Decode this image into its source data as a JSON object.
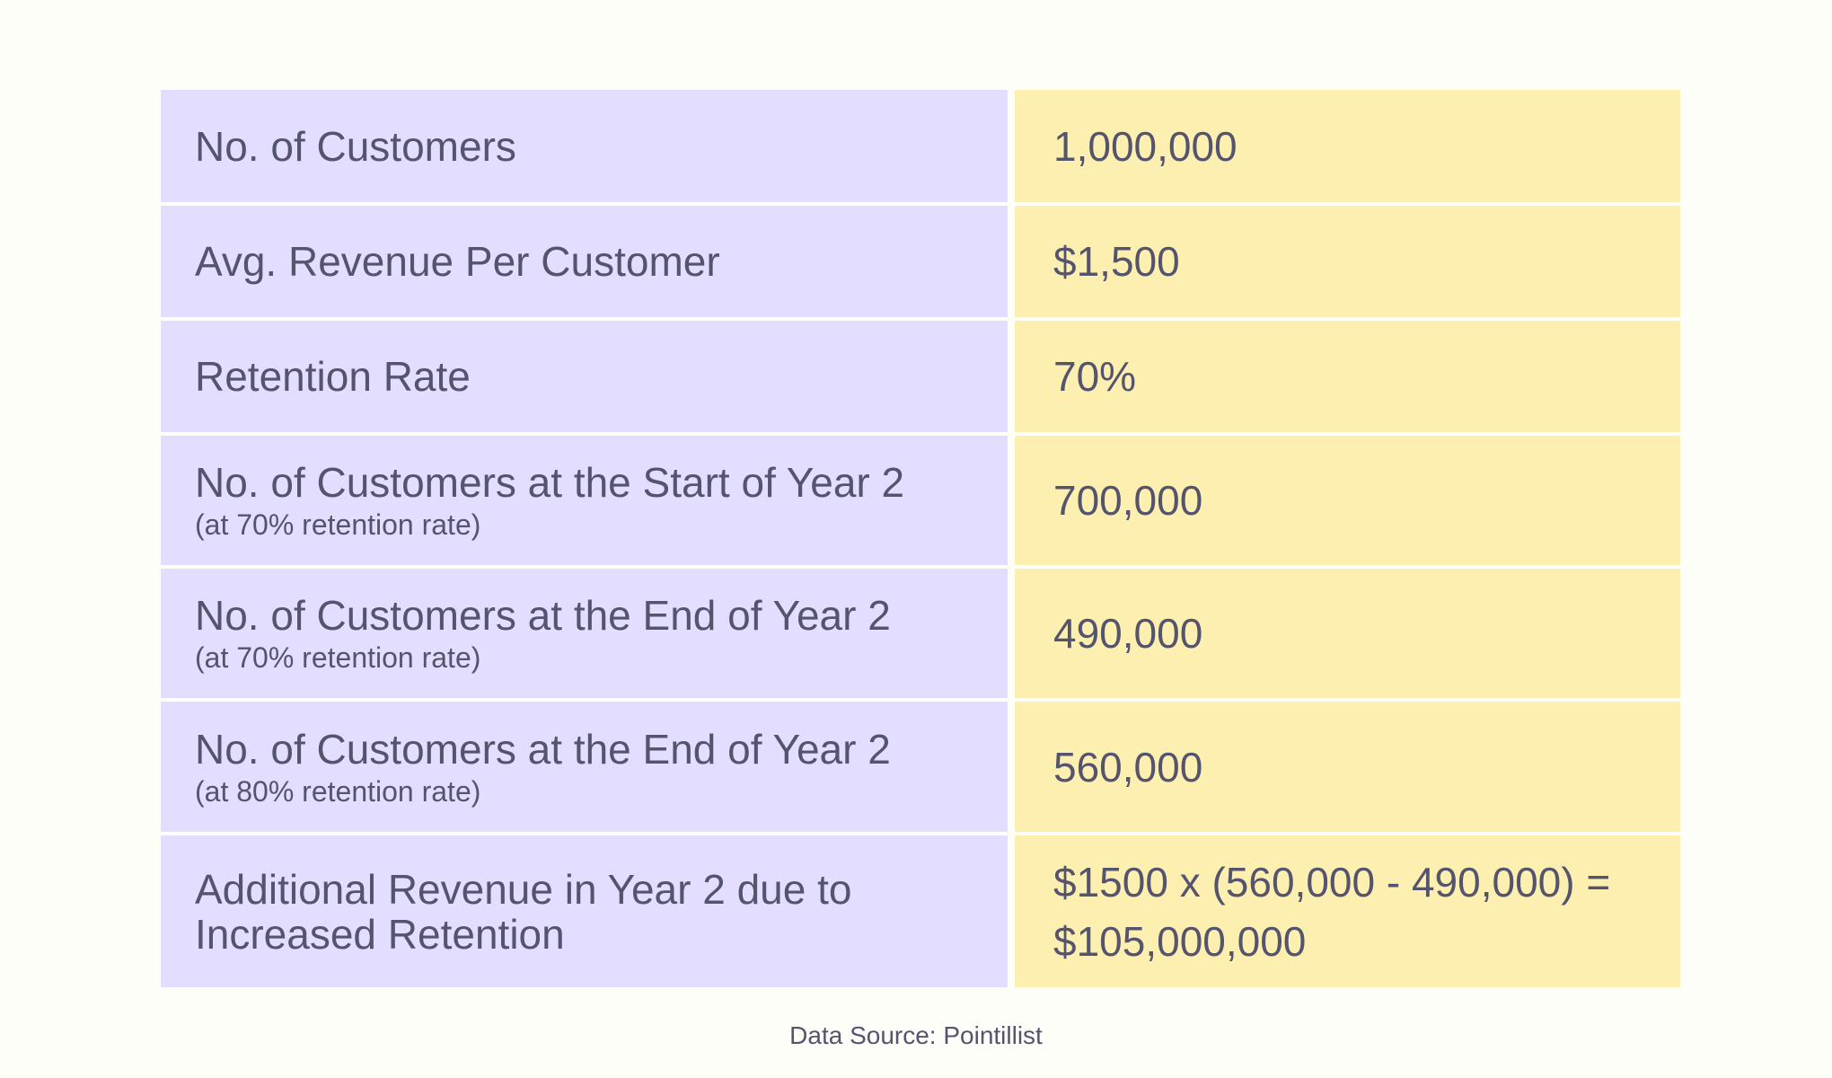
{
  "table": {
    "rows": [
      {
        "label": "No. of Customers",
        "sublabel": "",
        "value": "1,000,000"
      },
      {
        "label": "Avg. Revenue Per Customer",
        "sublabel": "",
        "value": "$1,500"
      },
      {
        "label": "Retention Rate",
        "sublabel": "",
        "value": "70%"
      },
      {
        "label": "No. of Customers at the Start of Year 2",
        "sublabel": "(at 70% retention rate)",
        "value": "700,000"
      },
      {
        "label": "No. of Customers at the End of Year 2",
        "sublabel": "(at 70% retention rate)",
        "value": "490,000"
      },
      {
        "label": "No. of Customers at the End of Year 2",
        "sublabel": "(at 80% retention rate)",
        "value": "560,000"
      },
      {
        "label": "Additional Revenue in Year 2 due to Increased Retention",
        "sublabel": "",
        "value": "$1500 x (560,000 - 490,000) = $105,000,000"
      }
    ]
  },
  "footer": {
    "source": "Data Source: Pointillist"
  },
  "colors": {
    "label_bg": "#e3deff",
    "value_bg": "#fdefaf",
    "text": "#55546e",
    "page_bg": "#fefef8"
  }
}
